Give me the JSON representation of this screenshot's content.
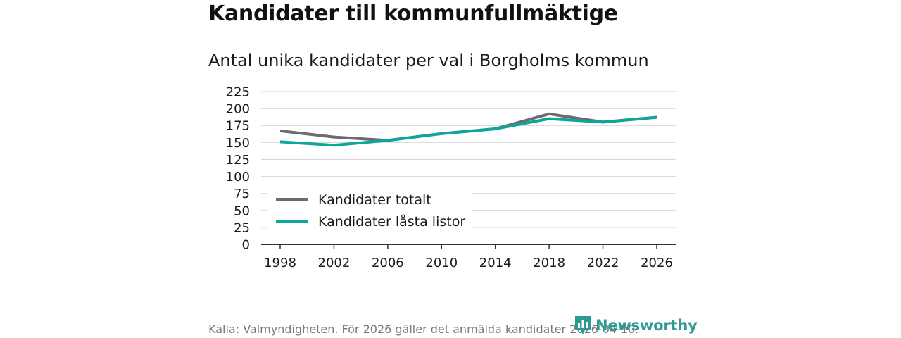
{
  "title": "Kandidater till kommunfullmäktige",
  "subtitle": "Antal unika kandidater per val i Borgholms kommun",
  "source": "Källa: Valmyndigheten. För 2026 gäller det anmälda kandidater 2026-04-10.",
  "brand": {
    "name": "Newsworthy",
    "icon": "newsworthy-logo-icon",
    "color": "#2b9b93"
  },
  "chart_data": {
    "type": "line",
    "title": "Kandidater till kommunfullmäktige",
    "subtitle": "Antal unika kandidater per val i Borgholms kommun",
    "xlabel": "",
    "ylabel": "",
    "x": [
      1998,
      2002,
      2006,
      2010,
      2014,
      2018,
      2022,
      2026
    ],
    "x_tick_labels": [
      "1998",
      "2002",
      "2006",
      "2010",
      "2014",
      "2018",
      "2022",
      "2026"
    ],
    "ylim": [
      0,
      225
    ],
    "y_ticks": [
      0,
      25,
      50,
      75,
      100,
      125,
      150,
      175,
      200,
      225
    ],
    "grid": true,
    "legend_position": "bottom-left",
    "series": [
      {
        "name": "Kandidater totalt",
        "color": "#6d6b70",
        "values": [
          167,
          158,
          153,
          163,
          170,
          192,
          180,
          187
        ]
      },
      {
        "name": "Kandidater låsta listor",
        "color": "#0ea59a",
        "values": [
          151,
          146,
          153,
          163,
          170,
          185,
          180,
          187
        ]
      }
    ]
  }
}
